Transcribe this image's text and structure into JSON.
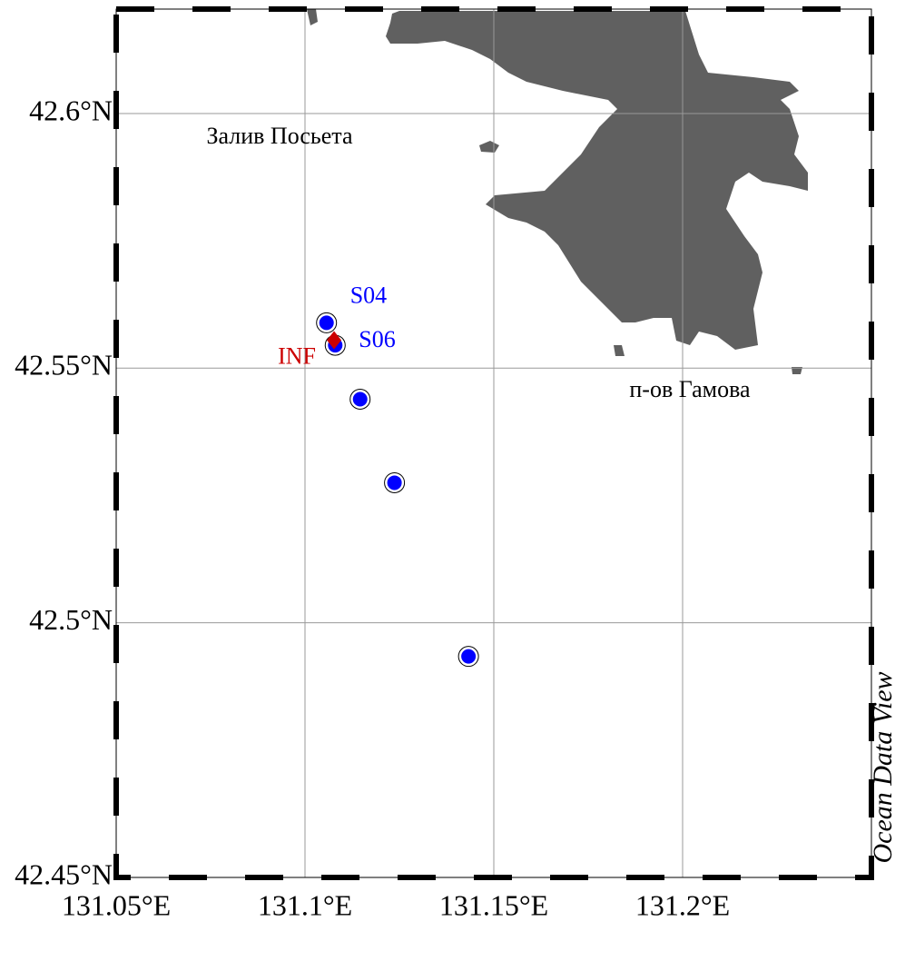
{
  "chart_data": {
    "type": "scatter",
    "xlim": [
      131.05,
      131.25
    ],
    "ylim": [
      42.45,
      42.6205
    ],
    "xticks": [
      {
        "value": 131.05,
        "label": "131.05°E"
      },
      {
        "value": 131.1,
        "label": "131.1°E"
      },
      {
        "value": 131.15,
        "label": "131.15°E"
      },
      {
        "value": 131.2,
        "label": "131.2°E"
      }
    ],
    "yticks": [
      {
        "value": 42.45,
        "label": "42.45°N"
      },
      {
        "value": 42.5,
        "label": "42.5°N"
      },
      {
        "value": 42.55,
        "label": "42.55°N"
      },
      {
        "value": 42.6,
        "label": "42.6°N"
      }
    ],
    "grid": true,
    "series": [
      {
        "marker": "circle",
        "color": "#0000ff",
        "x": [
          131.1057,
          131.108,
          131.1146,
          131.1237,
          131.1433
        ],
        "y": [
          42.5589,
          42.5545,
          42.5439,
          42.5275,
          42.4934
        ],
        "labels": [
          "S04",
          "S06",
          null,
          null,
          null
        ]
      },
      {
        "marker": "diamond",
        "color": "#cc0000",
        "x": [
          131.1077
        ],
        "y": [
          42.5555
        ],
        "labels": [
          "INF"
        ]
      }
    ],
    "annotations": [
      "Залив Посьета",
      "п-ов Гамова"
    ],
    "watermark": "Ocean Data View"
  }
}
